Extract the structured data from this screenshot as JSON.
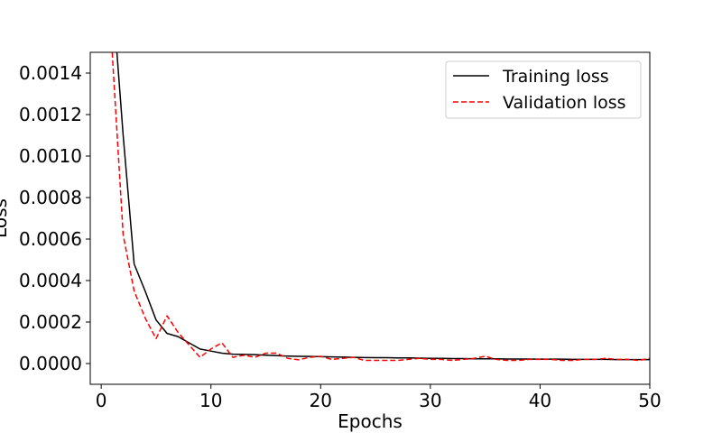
{
  "chart_data": {
    "type": "line",
    "title": "",
    "xlabel": "Epochs",
    "ylabel": "Loss",
    "xlim": [
      -1,
      50
    ],
    "ylim": [
      -0.0001,
      0.0015
    ],
    "xticks": [
      0,
      10,
      20,
      30,
      40,
      50
    ],
    "yticks": [
      0.0,
      0.0002,
      0.0004,
      0.0006,
      0.0008,
      0.001,
      0.0012,
      0.0014
    ],
    "xtick_labels": [
      "0",
      "10",
      "20",
      "30",
      "40",
      "50"
    ],
    "ytick_labels": [
      "0.0000",
      "0.0002",
      "0.0004",
      "0.0006",
      "0.0008",
      "0.0010",
      "0.0012",
      "0.0014"
    ],
    "grid": false,
    "legend_position": "top-right",
    "series": [
      {
        "name": "Training loss",
        "color": "#000000",
        "style": "solid",
        "x": [
          1,
          2,
          3,
          4,
          5,
          6,
          7,
          8,
          9,
          10,
          11,
          12,
          13,
          14,
          15,
          16,
          17,
          18,
          19,
          20,
          21,
          22,
          23,
          24,
          25,
          26,
          27,
          28,
          29,
          30,
          31,
          32,
          33,
          34,
          35,
          36,
          37,
          38,
          39,
          40,
          41,
          42,
          43,
          44,
          45,
          46,
          47,
          48,
          49,
          50
        ],
        "y": [
          0.0018,
          0.0011,
          0.00048,
          0.00035,
          0.00021,
          0.000145,
          0.00013,
          0.0001,
          7e-05,
          6e-05,
          5e-05,
          4.5e-05,
          4.4e-05,
          4.3e-05,
          4e-05,
          3.8e-05,
          3.6e-05,
          3.5e-05,
          3.4e-05,
          3.3e-05,
          3.2e-05,
          3.1e-05,
          3e-05,
          2.9e-05,
          2.8e-05,
          2.8e-05,
          2.7e-05,
          2.7e-05,
          2.6e-05,
          2.5e-05,
          2.5e-05,
          2.4e-05,
          2.4e-05,
          2.3e-05,
          2.3e-05,
          2.3e-05,
          2.2e-05,
          2.2e-05,
          2.2e-05,
          2.1e-05,
          2.1e-05,
          2.1e-05,
          2e-05,
          2e-05,
          2e-05,
          2e-05,
          1.9e-05,
          1.9e-05,
          1.9e-05,
          1.9e-05
        ]
      },
      {
        "name": "Validation loss",
        "color": "#ff0000",
        "style": "dashed",
        "x": [
          1,
          2,
          3,
          4,
          5,
          6,
          7,
          8,
          9,
          10,
          11,
          12,
          13,
          14,
          15,
          16,
          17,
          18,
          19,
          20,
          21,
          22,
          23,
          24,
          25,
          26,
          27,
          28,
          29,
          30,
          31,
          32,
          33,
          34,
          35,
          36,
          37,
          38,
          39,
          40,
          41,
          42,
          43,
          44,
          45,
          46,
          47,
          48,
          49,
          50
        ],
        "y": [
          0.0015,
          0.00062,
          0.00035,
          0.00022,
          0.00012,
          0.00023,
          0.00015,
          9e-05,
          3e-05,
          7e-05,
          0.0001,
          3e-05,
          4e-05,
          3e-05,
          5e-05,
          5e-05,
          2.5e-05,
          1.8e-05,
          3e-05,
          3.5e-05,
          2e-05,
          2.5e-05,
          3e-05,
          1.5e-05,
          1.5e-05,
          1.5e-05,
          1.5e-05,
          2e-05,
          2.5e-05,
          2e-05,
          2e-05,
          1.5e-05,
          2e-05,
          2.5e-05,
          3.5e-05,
          2e-05,
          1.5e-05,
          1.5e-05,
          2e-05,
          2e-05,
          2e-05,
          1.5e-05,
          1.5e-05,
          2e-05,
          2e-05,
          2.5e-05,
          2e-05,
          2e-05,
          1.5e-05,
          2.5e-05
        ]
      }
    ]
  }
}
